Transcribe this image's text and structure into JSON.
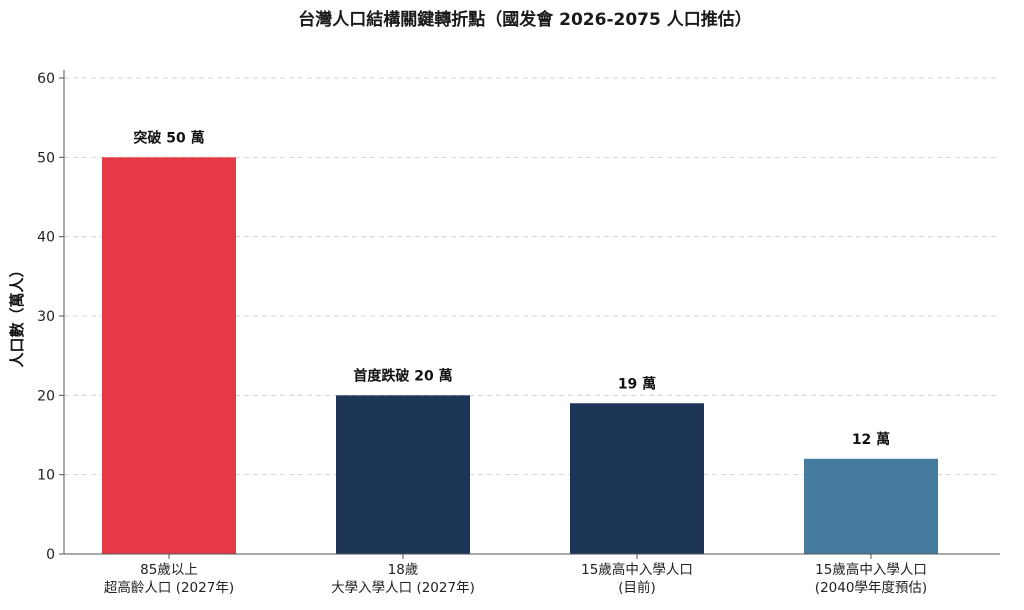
{
  "chart_data": {
    "type": "bar",
    "title": "台灣人口結構關鍵轉折點（國发會 2026-2075 人口推估）",
    "xlabel": "",
    "ylabel": "人口數（萬人）",
    "ylim": [
      0,
      60
    ],
    "yticks": [
      0,
      10,
      20,
      30,
      40,
      50,
      60
    ],
    "grid": true,
    "categories": [
      [
        "85歲以上",
        "超高齡人口 (2027年)"
      ],
      [
        "18歲",
        "大學入學人口 (2027年)"
      ],
      [
        "15歲高中入學人口",
        "(目前)"
      ],
      [
        "15歲高中入學人口",
        "(2040學年度預估)"
      ]
    ],
    "values": [
      50,
      20,
      19,
      12
    ],
    "bar_labels": [
      "突破 50 萬",
      "首度跌破 20 萬",
      "19 萬",
      "12 萬"
    ],
    "colors": [
      "#e63946",
      "#1d3557",
      "#1d3557",
      "#457b9d"
    ]
  }
}
